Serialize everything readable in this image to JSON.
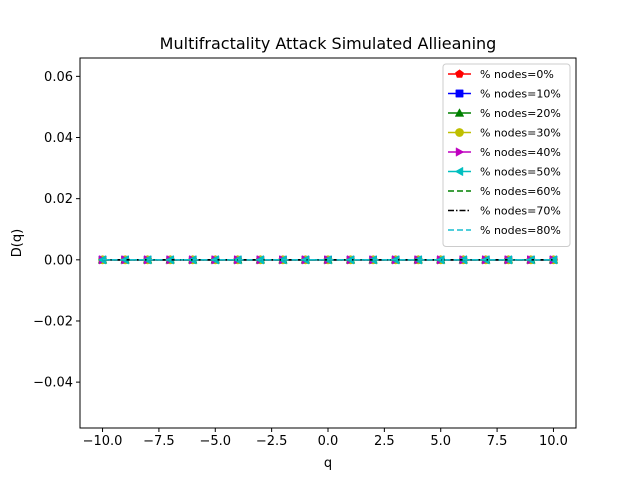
{
  "chart_data": {
    "type": "line",
    "title": "Multifractality Attack Simulated Allieaning",
    "xlabel": "q",
    "ylabel": "D(q)",
    "xlim": [
      -11,
      11
    ],
    "ylim": [
      -0.055,
      0.066
    ],
    "xticks": [
      -10.0,
      -7.5,
      -5.0,
      -2.5,
      0.0,
      2.5,
      5.0,
      7.5,
      10.0
    ],
    "xtick_labels": [
      "−10.0",
      "−7.5",
      "−5.0",
      "−2.5",
      "0.0",
      "2.5",
      "5.0",
      "7.5",
      "10.0"
    ],
    "yticks": [
      -0.04,
      -0.02,
      0.0,
      0.02,
      0.04,
      0.06
    ],
    "ytick_labels": [
      "−0.04",
      "−0.02",
      "0.00",
      "0.02",
      "0.04",
      "0.06"
    ],
    "grid": false,
    "legend_position": "top-right",
    "x": [
      -10,
      -9,
      -8,
      -7,
      -6,
      -5,
      -4,
      -3,
      -2,
      -1,
      0,
      1,
      2,
      3,
      4,
      5,
      6,
      7,
      8,
      9,
      10
    ],
    "series": [
      {
        "name": "% nodes=0%",
        "color": "#ff0000",
        "marker": "pentagon",
        "linestyle": "solid",
        "values": [
          0,
          0,
          0,
          0,
          0,
          0,
          0,
          0,
          0,
          0,
          0,
          0,
          0,
          0,
          0,
          0,
          0,
          0,
          0,
          0,
          0
        ]
      },
      {
        "name": "% nodes=10%",
        "color": "#0000ff",
        "marker": "square",
        "linestyle": "solid",
        "values": [
          0,
          0,
          0,
          0,
          0,
          0,
          0,
          0,
          0,
          0,
          0,
          0,
          0,
          0,
          0,
          0,
          0,
          0,
          0,
          0,
          0
        ]
      },
      {
        "name": "% nodes=20%",
        "color": "#008000",
        "marker": "triangle-up",
        "linestyle": "solid",
        "values": [
          0,
          0,
          0,
          0,
          0,
          0,
          0,
          0,
          0,
          0,
          0,
          0,
          0,
          0,
          0,
          0,
          0,
          0,
          0,
          0,
          0
        ]
      },
      {
        "name": "% nodes=30%",
        "color": "#bfbf00",
        "marker": "circle",
        "linestyle": "solid",
        "values": [
          0,
          0,
          0,
          0,
          0,
          0,
          0,
          0,
          0,
          0,
          0,
          0,
          0,
          0,
          0,
          0,
          0,
          0,
          0,
          0,
          0
        ]
      },
      {
        "name": "% nodes=40%",
        "color": "#bf00bf",
        "marker": "triangle-right",
        "linestyle": "solid",
        "values": [
          0,
          0,
          0,
          0,
          0,
          0,
          0,
          0,
          0,
          0,
          0,
          0,
          0,
          0,
          0,
          0,
          0,
          0,
          0,
          0,
          0
        ]
      },
      {
        "name": "% nodes=50%",
        "color": "#00bfbf",
        "marker": "triangle-left",
        "linestyle": "solid",
        "values": [
          0,
          0,
          0,
          0,
          0,
          0,
          0,
          0,
          0,
          0,
          0,
          0,
          0,
          0,
          0,
          0,
          0,
          0,
          0,
          0,
          0
        ]
      },
      {
        "name": "% nodes=60%",
        "color": "#008000",
        "marker": "none",
        "linestyle": "dashed",
        "values": [
          0,
          0,
          0,
          0,
          0,
          0,
          0,
          0,
          0,
          0,
          0,
          0,
          0,
          0,
          0,
          0,
          0,
          0,
          0,
          0,
          0
        ]
      },
      {
        "name": "% nodes=70%",
        "color": "#000000",
        "marker": "none",
        "linestyle": "dashdot",
        "values": [
          0,
          0,
          0,
          0,
          0,
          0,
          0,
          0,
          0,
          0,
          0,
          0,
          0,
          0,
          0,
          0,
          0,
          0,
          0,
          0,
          0
        ]
      },
      {
        "name": "% nodes=80%",
        "color": "#17becf",
        "marker": "none",
        "linestyle": "dashed",
        "values": [
          0,
          0,
          0,
          0,
          0,
          0,
          0,
          0,
          0,
          0,
          0,
          0,
          0,
          0,
          0,
          0,
          0,
          0,
          0,
          0,
          0
        ]
      }
    ]
  }
}
